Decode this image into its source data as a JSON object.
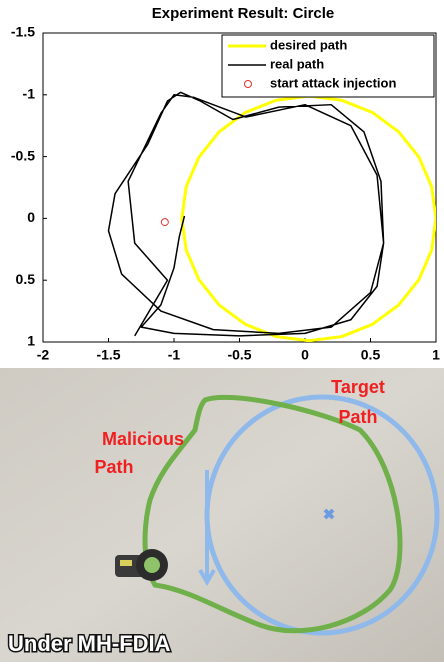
{
  "chart_data": {
    "type": "line",
    "title": "Experiment Result: Circle",
    "xlim": [
      -2,
      1
    ],
    "ylim": [
      -1.5,
      1
    ],
    "y_reversed": true,
    "xticks": [
      -2,
      -1.5,
      -1,
      -0.5,
      0,
      0.5,
      1
    ],
    "yticks": [
      -1.5,
      -1,
      -0.5,
      0,
      0.5,
      1
    ],
    "legend": "upper right",
    "series": [
      {
        "name": "desired path",
        "color": "#ffff00",
        "marker": "none",
        "x": [
          1.0,
          0.967,
          0.87,
          0.716,
          0.515,
          0.281,
          0.03,
          -0.221,
          -0.455,
          -0.656,
          -0.81,
          -0.907,
          -0.94,
          -0.907,
          -0.81,
          -0.656,
          -0.455,
          -0.221,
          0.03,
          0.281,
          0.515,
          0.716,
          0.87,
          0.967,
          1.0
        ],
        "values": [
          0,
          0.256,
          0.495,
          0.7,
          0.857,
          0.956,
          0.99,
          0.956,
          0.857,
          0.7,
          0.495,
          0.256,
          0,
          -0.256,
          -0.495,
          -0.7,
          -0.857,
          -0.956,
          -0.99,
          -0.956,
          -0.857,
          -0.7,
          -0.495,
          -0.256,
          0
        ]
      },
      {
        "name": "real path",
        "color": "#000000",
        "marker": "none",
        "x": [
          -0.92,
          -0.96,
          -1.0,
          -1.1,
          -1.25,
          -1.0,
          -0.5,
          0.0,
          0.35,
          0.55,
          0.6,
          0.58,
          0.45,
          0.2,
          -0.2,
          -0.55,
          -0.8,
          -0.95,
          -1.05,
          -1.2,
          -1.45,
          -1.5,
          -1.4,
          -1.1,
          -0.7,
          -0.2,
          0.2,
          0.5,
          0.6,
          0.55,
          0.35,
          0.0,
          -0.45,
          -0.85,
          -1.0,
          -1.1,
          -1.35,
          -1.3,
          -1.05,
          -1.3
        ],
        "values": [
          -0.02,
          0.15,
          0.4,
          0.7,
          0.88,
          0.93,
          0.95,
          0.93,
          0.82,
          0.55,
          0.2,
          -0.3,
          -0.7,
          -0.92,
          -0.9,
          -0.8,
          -0.95,
          -1.02,
          -0.95,
          -0.6,
          -0.2,
          0.1,
          0.45,
          0.75,
          0.9,
          0.93,
          0.88,
          0.6,
          0.2,
          -0.35,
          -0.75,
          -0.92,
          -0.82,
          -0.98,
          -1.0,
          -0.85,
          -0.3,
          0.2,
          0.5,
          0.95
        ]
      },
      {
        "name": "start attack injection",
        "color": "#e8302a",
        "marker": "o",
        "x": [
          -1.07
        ],
        "values": [
          0.03
        ]
      }
    ]
  },
  "photo": {
    "target_label": [
      "Target",
      "Path"
    ],
    "malicious_label": [
      "Malicious",
      "Path"
    ],
    "caption": "Under MH-FDIA"
  }
}
